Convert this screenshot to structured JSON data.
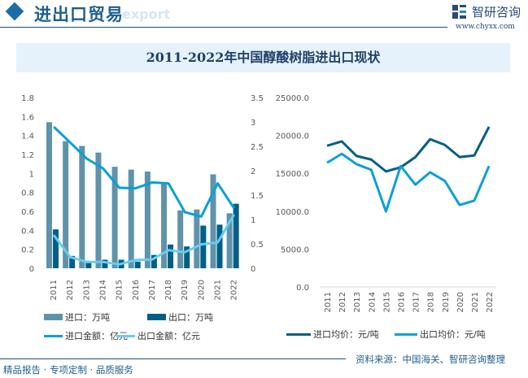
{
  "header": {
    "title": "进出口贸易",
    "ghost_text": "export",
    "logo_text": "智研咨询",
    "logo_url": "www.chyxx.com"
  },
  "colors": {
    "import_volume": "#5f93aa",
    "export_volume": "#005f86",
    "import_value": "#0aa0d8",
    "export_value": "#66cdf3",
    "import_price": "#005f86",
    "export_price": "#0aa0d8"
  },
  "chart_data": [
    {
      "type": "bar",
      "title": "2011-2022年中国醇酸树脂进出口现状",
      "categories": [
        "2011",
        "2012",
        "2013",
        "2014",
        "2015",
        "2016",
        "2017",
        "2018",
        "2019",
        "2020",
        "2021",
        "2022"
      ],
      "ylim": [
        0,
        1.8
      ],
      "yticks": [
        "0",
        "0.2",
        "0.4",
        "0.6",
        "0.8",
        "1",
        "1.2",
        "1.4",
        "1.6",
        "1.8"
      ],
      "y2lim": [
        0,
        3.5
      ],
      "y2ticks": [
        "0",
        "0.5",
        "1",
        "1.5",
        "2",
        "2.5",
        "3",
        "3.5"
      ],
      "series": [
        {
          "name": "进口：万吨",
          "kind": "bar",
          "axis": "left",
          "values": [
            1.54,
            1.34,
            1.29,
            1.22,
            1.07,
            1.04,
            1.02,
            0.9,
            0.61,
            0.62,
            0.99,
            0.58
          ]
        },
        {
          "name": "出口：万吨",
          "kind": "bar",
          "axis": "left",
          "values": [
            0.41,
            0.13,
            0.06,
            0.09,
            0.09,
            0.07,
            0.14,
            0.25,
            0.23,
            0.45,
            0.46,
            0.68
          ]
        },
        {
          "name": "进口金额：亿元",
          "kind": "line",
          "axis": "right",
          "values": [
            2.9,
            2.58,
            2.25,
            2.05,
            1.65,
            1.64,
            1.76,
            1.74,
            1.15,
            1.06,
            1.74,
            1.23
          ]
        },
        {
          "name": "出口金额：亿元",
          "kind": "line",
          "axis": "right",
          "values": [
            0.68,
            0.23,
            0.13,
            0.13,
            0.08,
            0.17,
            0.18,
            0.37,
            0.33,
            0.49,
            0.53,
            1.1
          ]
        }
      ],
      "legend": "bottom"
    },
    {
      "type": "line",
      "categories": [
        "2011",
        "2012",
        "2013",
        "2014",
        "2015",
        "2016",
        "2017",
        "2018",
        "2019",
        "2020",
        "2021",
        "2022"
      ],
      "ylim": [
        0,
        25000
      ],
      "yticks": [
        "0.0",
        "5000.0",
        "10000.0",
        "15000.0",
        "20000.0",
        "25000.0"
      ],
      "series": [
        {
          "name": "进口均价：元/吨",
          "values": [
            18640,
            19210,
            17290,
            16820,
            15250,
            15790,
            17140,
            19500,
            18750,
            17140,
            17360,
            21140
          ]
        },
        {
          "name": "出口均价：元/吨",
          "values": [
            16390,
            17570,
            16210,
            15460,
            9960,
            15960,
            13500,
            15140,
            14000,
            10820,
            11390,
            15960
          ]
        }
      ],
      "legend": "bottom"
    }
  ],
  "footer": {
    "left": "精品报告 · 专项定制 · 品质服务",
    "source": "资料来源：中国海关、智研咨询整理"
  }
}
